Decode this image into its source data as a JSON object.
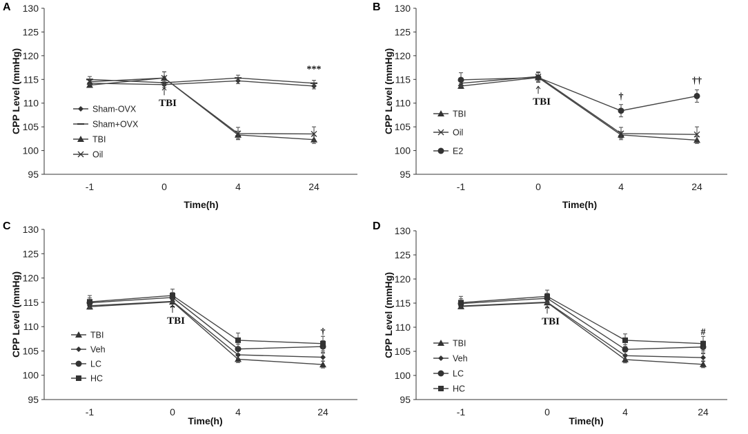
{
  "chart_data": [
    {
      "type": "line",
      "panel": "A",
      "xlabel": "Time(h)",
      "ylabel": "CPP Level (mmHg)",
      "categories": [
        "-1",
        "0",
        "4",
        "24"
      ],
      "ylim": [
        95,
        130
      ],
      "yticks": [
        95,
        100,
        105,
        110,
        115,
        120,
        125,
        130
      ],
      "arrow_label": "TBI",
      "annotations": [
        {
          "text": "***",
          "category_index": 3,
          "y": 116.6
        }
      ],
      "series": [
        {
          "name": "Sham-OVX",
          "marker": "diamond",
          "values": [
            114.2,
            113.9,
            114.7,
            113.6
          ],
          "errors": [
            0.6,
            0.6,
            0.6,
            0.6
          ]
        },
        {
          "name": "Sham+OVX",
          "marker": "dash",
          "values": [
            115.0,
            114.3,
            115.3,
            114.2
          ],
          "errors": [
            0.6,
            0.6,
            0.6,
            0.6
          ]
        },
        {
          "name": "TBI",
          "marker": "triangle",
          "values": [
            113.8,
            115.3,
            103.3,
            102.3
          ],
          "errors": [
            0.5,
            1.3,
            0.8,
            0.8
          ]
        },
        {
          "name": "Oil",
          "marker": "x",
          "values": [
            114.5,
            115.3,
            103.6,
            103.5
          ],
          "errors": [
            0.6,
            1.3,
            1.3,
            1.5
          ]
        }
      ]
    },
    {
      "type": "line",
      "panel": "B",
      "xlabel": "Time(h)",
      "ylabel": "CPP Level (mmHg)",
      "categories": [
        "-1",
        "0",
        "4",
        "24"
      ],
      "ylim": [
        95,
        130
      ],
      "yticks": [
        95,
        100,
        105,
        110,
        115,
        120,
        125,
        130
      ],
      "arrow_label": "TBI",
      "annotations": [
        {
          "text": "†",
          "category_index": 2,
          "y": 110.8
        },
        {
          "text": "††",
          "category_index": 3,
          "y": 114.2
        }
      ],
      "series": [
        {
          "name": "TBI",
          "marker": "triangle",
          "values": [
            113.6,
            115.4,
            103.3,
            102.2
          ],
          "errors": [
            0.5,
            1.0,
            0.7,
            0.7
          ]
        },
        {
          "name": "Oil",
          "marker": "x",
          "values": [
            114.2,
            115.6,
            103.6,
            103.4
          ],
          "errors": [
            0.6,
            1.0,
            1.3,
            1.6
          ]
        },
        {
          "name": "E2",
          "marker": "circle",
          "values": [
            114.9,
            115.4,
            108.4,
            111.5
          ],
          "errors": [
            1.5,
            1.0,
            1.3,
            1.3
          ]
        }
      ]
    },
    {
      "type": "line",
      "panel": "C",
      "xlabel": "Time(h)",
      "ylabel": "CPP Level (mmHg)",
      "categories": [
        "-1",
        "0",
        "4",
        "24"
      ],
      "ylim": [
        95,
        130
      ],
      "yticks": [
        95,
        100,
        105,
        110,
        115,
        120,
        125,
        130
      ],
      "arrow_label": "TBI",
      "annotations": [
        {
          "text": "†",
          "category_index": 3,
          "y": 108.4
        }
      ],
      "series": [
        {
          "name": "TBI",
          "marker": "triangle",
          "values": [
            114.1,
            115.1,
            103.3,
            102.2
          ],
          "errors": [
            0.5,
            1.0,
            0.7,
            0.7
          ]
        },
        {
          "name": "Veh",
          "marker": "diamond",
          "values": [
            114.3,
            115.2,
            104.2,
            103.7
          ],
          "errors": [
            0.5,
            1.0,
            0.8,
            0.8
          ]
        },
        {
          "name": "LC",
          "marker": "circle",
          "values": [
            114.9,
            116.0,
            105.4,
            105.9
          ],
          "errors": [
            1.0,
            1.0,
            1.0,
            1.2
          ]
        },
        {
          "name": "HC",
          "marker": "square",
          "values": [
            115.1,
            116.4,
            107.2,
            106.5
          ],
          "errors": [
            1.3,
            1.3,
            1.5,
            1.5
          ]
        }
      ]
    },
    {
      "type": "line",
      "panel": "D",
      "xlabel": "Time(h)",
      "ylabel": "CPP Level (mmHg)",
      "categories": [
        "-1",
        "0",
        "4",
        "24"
      ],
      "ylim": [
        95,
        130
      ],
      "yticks": [
        95,
        100,
        105,
        110,
        115,
        120,
        125,
        130
      ],
      "arrow_label": "TBI",
      "annotations": [
        {
          "text": "#",
          "category_index": 3,
          "y": 108.4
        }
      ],
      "series": [
        {
          "name": "TBI",
          "marker": "triangle",
          "values": [
            114.3,
            115.1,
            103.3,
            102.3
          ],
          "errors": [
            0.5,
            1.0,
            0.7,
            0.7
          ]
        },
        {
          "name": "Veh",
          "marker": "diamond",
          "values": [
            114.4,
            115.2,
            104.1,
            103.7
          ],
          "errors": [
            0.5,
            1.0,
            0.8,
            0.8
          ]
        },
        {
          "name": "LC",
          "marker": "circle",
          "values": [
            114.9,
            116.0,
            105.4,
            105.9
          ],
          "errors": [
            1.0,
            1.0,
            1.0,
            1.2
          ]
        },
        {
          "name": "HC",
          "marker": "square",
          "values": [
            115.1,
            116.4,
            107.3,
            106.6
          ],
          "errors": [
            1.3,
            1.3,
            1.3,
            1.5
          ]
        }
      ]
    }
  ]
}
